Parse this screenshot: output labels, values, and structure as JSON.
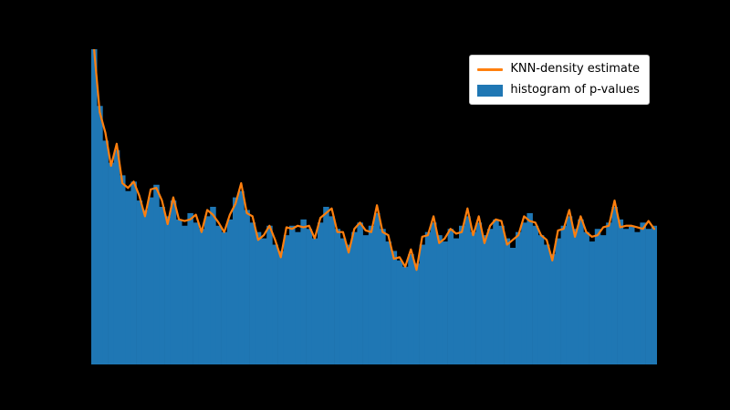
{
  "figure": {
    "background_color": "#000000",
    "axes_background_color": "#000000",
    "tick_labels_visible": false,
    "title_visible": false
  },
  "legend": {
    "position": "upper right",
    "background_color": "#ffffff",
    "border_color": "#c8c8c8",
    "items": [
      {
        "label": "KNN-density estimate",
        "swatch": "line",
        "color": "#ff7f0e"
      },
      {
        "label": "histogram of p-values",
        "swatch": "patch",
        "color": "#1f77b4"
      }
    ]
  },
  "chart_data": {
    "type": "bar",
    "subtype": "histogram-with-density-line",
    "title": "",
    "xlabel": "",
    "ylabel": "",
    "x_range": [
      0,
      1
    ],
    "y_range_normalized": [
      0,
      1
    ],
    "n_bins": 100,
    "grid": false,
    "legend_position": "upper right",
    "bar_color": "#1f77b4",
    "line_color": "#ff7f0e",
    "line_width": 2.2,
    "bin_heights": [
      1.0,
      0.82,
      0.71,
      0.64,
      0.68,
      0.6,
      0.55,
      0.58,
      0.52,
      0.49,
      0.53,
      0.57,
      0.5,
      0.47,
      0.52,
      0.46,
      0.44,
      0.48,
      0.45,
      0.43,
      0.47,
      0.5,
      0.44,
      0.42,
      0.46,
      0.53,
      0.55,
      0.49,
      0.45,
      0.42,
      0.4,
      0.44,
      0.38,
      0.36,
      0.41,
      0.44,
      0.42,
      0.46,
      0.43,
      0.4,
      0.45,
      0.5,
      0.47,
      0.43,
      0.4,
      0.38,
      0.42,
      0.45,
      0.41,
      0.44,
      0.48,
      0.43,
      0.39,
      0.36,
      0.33,
      0.31,
      0.35,
      0.32,
      0.38,
      0.42,
      0.45,
      0.41,
      0.39,
      0.43,
      0.4,
      0.44,
      0.47,
      0.42,
      0.45,
      0.41,
      0.43,
      0.46,
      0.44,
      0.4,
      0.37,
      0.42,
      0.45,
      0.48,
      0.44,
      0.41,
      0.38,
      0.35,
      0.4,
      0.44,
      0.47,
      0.43,
      0.46,
      0.42,
      0.39,
      0.43,
      0.41,
      0.45,
      0.5,
      0.46,
      0.43,
      0.44,
      0.42,
      0.45,
      0.43,
      0.44
    ],
    "knn_density_values": [
      1.0,
      0.8,
      0.735,
      0.63,
      0.7,
      0.575,
      0.56,
      0.58,
      0.535,
      0.47,
      0.555,
      0.56,
      0.52,
      0.445,
      0.53,
      0.46,
      0.455,
      0.46,
      0.475,
      0.42,
      0.49,
      0.475,
      0.45,
      0.42,
      0.475,
      0.51,
      0.575,
      0.48,
      0.47,
      0.395,
      0.41,
      0.44,
      0.395,
      0.34,
      0.435,
      0.43,
      0.44,
      0.435,
      0.44,
      0.4,
      0.465,
      0.48,
      0.495,
      0.42,
      0.42,
      0.355,
      0.43,
      0.45,
      0.425,
      0.42,
      0.505,
      0.42,
      0.41,
      0.335,
      0.34,
      0.31,
      0.365,
      0.3,
      0.405,
      0.41,
      0.47,
      0.385,
      0.4,
      0.43,
      0.415,
      0.42,
      0.495,
      0.41,
      0.47,
      0.385,
      0.44,
      0.46,
      0.455,
      0.38,
      0.395,
      0.41,
      0.47,
      0.455,
      0.45,
      0.41,
      0.395,
      0.33,
      0.425,
      0.43,
      0.49,
      0.405,
      0.47,
      0.42,
      0.405,
      0.41,
      0.435,
      0.44,
      0.52,
      0.435,
      0.44,
      0.44,
      0.435,
      0.43,
      0.455,
      0.43
    ]
  }
}
